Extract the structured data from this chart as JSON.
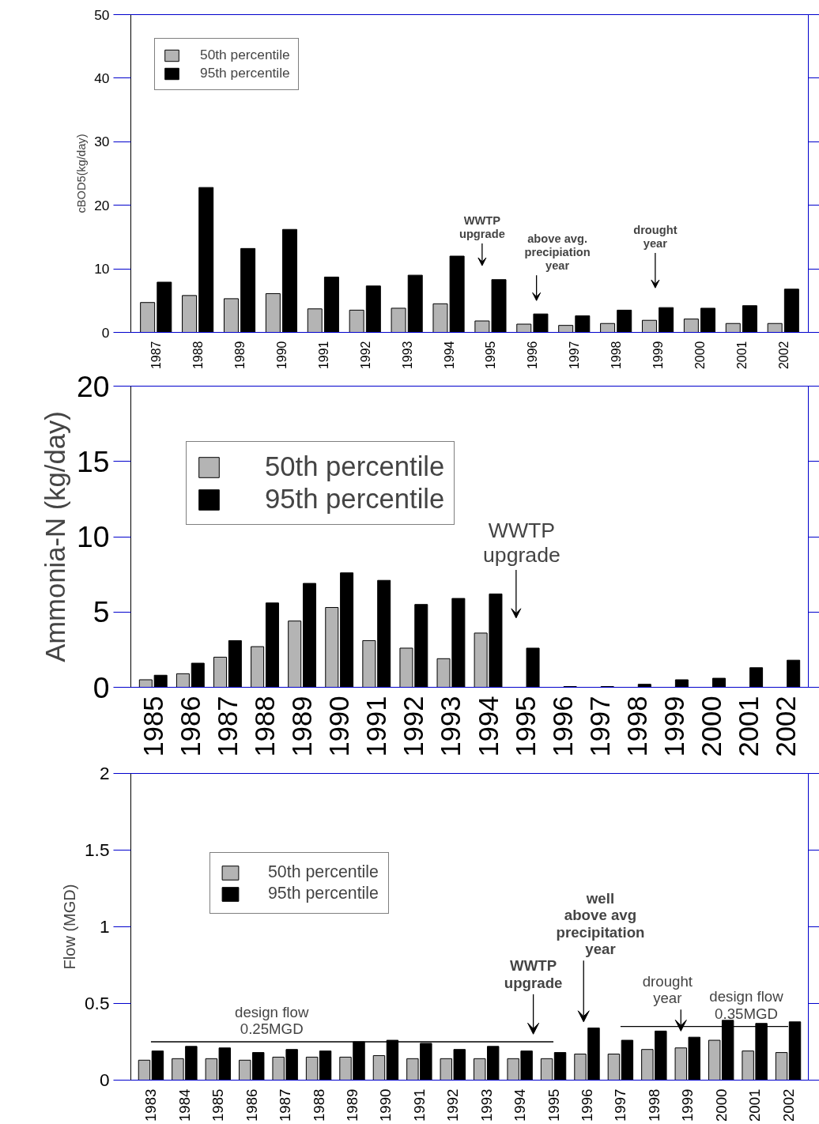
{
  "chart_data": [
    {
      "type": "bar",
      "ylabel": "cBOD5(kg/day)",
      "categories": [
        "1987",
        "1988",
        "1989",
        "1990",
        "1991",
        "1992",
        "1993",
        "1994",
        "1995",
        "1996",
        "1997",
        "1998",
        "1999",
        "2000",
        "2001",
        "2002"
      ],
      "series": [
        {
          "name": "50th percentile",
          "color": "#b4b4b4",
          "values": [
            4.7,
            5.8,
            5.3,
            6.1,
            3.7,
            3.5,
            3.8,
            4.5,
            1.8,
            1.3,
            1.1,
            1.4,
            1.9,
            2.1,
            1.4,
            1.4
          ]
        },
        {
          "name": "95th percentile",
          "color": "#000000",
          "values": [
            7.9,
            22.8,
            13.2,
            16.2,
            8.7,
            7.3,
            9.0,
            12.0,
            8.3,
            2.9,
            2.6,
            3.5,
            3.9,
            3.8,
            4.2,
            6.8
          ]
        }
      ],
      "ylim": [
        0,
        50
      ],
      "yticks": [
        0,
        10,
        20,
        30,
        40,
        50
      ],
      "legend": "top left",
      "annotations": [
        "WWTP\nupgrade",
        "above avg.\nprecipiation\nyear",
        "drought\nyear"
      ]
    },
    {
      "type": "bar",
      "ylabel": "Ammonia-N (kg/day)",
      "categories": [
        "1985",
        "1986",
        "1987",
        "1988",
        "1989",
        "1990",
        "1991",
        "1992",
        "1993",
        "1994",
        "1995",
        "1996",
        "1997",
        "1998",
        "1999",
        "2000",
        "2001",
        "2002"
      ],
      "series": [
        {
          "name": "50th percentile",
          "color": "#b4b4b4",
          "values": [
            0.5,
            0.9,
            2.0,
            2.7,
            4.4,
            5.3,
            3.1,
            2.6,
            1.9,
            3.6,
            null,
            null,
            null,
            null,
            null,
            null,
            null,
            null
          ]
        },
        {
          "name": "95th percentile",
          "color": "#000000",
          "values": [
            0.8,
            1.6,
            3.1,
            5.6,
            6.9,
            7.6,
            7.1,
            5.5,
            5.9,
            6.2,
            2.6,
            0.05,
            0.05,
            0.2,
            0.5,
            0.6,
            1.3,
            1.8
          ]
        }
      ],
      "ylim": [
        0,
        20
      ],
      "yticks": [
        0,
        5,
        10,
        15,
        20
      ],
      "legend": "top left",
      "annotations": [
        "WWTP\nupgrade"
      ]
    },
    {
      "type": "bar",
      "ylabel": "Flow (MGD)",
      "categories": [
        "1983",
        "1984",
        "1985",
        "1986",
        "1987",
        "1988",
        "1989",
        "1990",
        "1991",
        "1992",
        "1993",
        "1994",
        "1995",
        "1996",
        "1997",
        "1998",
        "1999",
        "2000",
        "2001",
        "2002"
      ],
      "series": [
        {
          "name": "50th percentile",
          "color": "#b4b4b4",
          "values": [
            0.13,
            0.14,
            0.14,
            0.13,
            0.15,
            0.15,
            0.15,
            0.16,
            0.14,
            0.14,
            0.14,
            0.14,
            0.14,
            0.17,
            0.17,
            0.2,
            0.21,
            0.26,
            0.19,
            0.18
          ]
        },
        {
          "name": "95th percentile",
          "color": "#000000",
          "values": [
            0.19,
            0.22,
            0.21,
            0.18,
            0.2,
            0.19,
            0.25,
            0.26,
            0.24,
            0.2,
            0.22,
            0.19,
            0.18,
            0.34,
            0.26,
            0.32,
            0.28,
            0.39,
            0.37,
            0.38
          ]
        },
        {
          "type": "line",
          "name": "design flow\n0.25MGD",
          "color": "#000000",
          "values": [
            0.25,
            0.25,
            0.25,
            0.25,
            0.25,
            0.25,
            0.25,
            0.25,
            0.25,
            0.25,
            0.25,
            0.25,
            0.25,
            null,
            null,
            null,
            null,
            null,
            null,
            null
          ]
        },
        {
          "type": "line",
          "name": "design flow\n0.35MGD",
          "color": "#000000",
          "values": [
            null,
            null,
            null,
            null,
            null,
            null,
            null,
            null,
            null,
            null,
            null,
            null,
            null,
            null,
            0.35,
            0.35,
            0.35,
            0.35,
            0.35,
            0.35
          ]
        }
      ],
      "ylim": [
        0,
        2
      ],
      "yticks": [
        0,
        0.5,
        1,
        1.5,
        2
      ],
      "legend": "top left",
      "annotations": [
        "WWTP\nupgrade",
        "well\nabove avg\nprecipitation\nyear",
        "drought\nyear"
      ]
    }
  ]
}
